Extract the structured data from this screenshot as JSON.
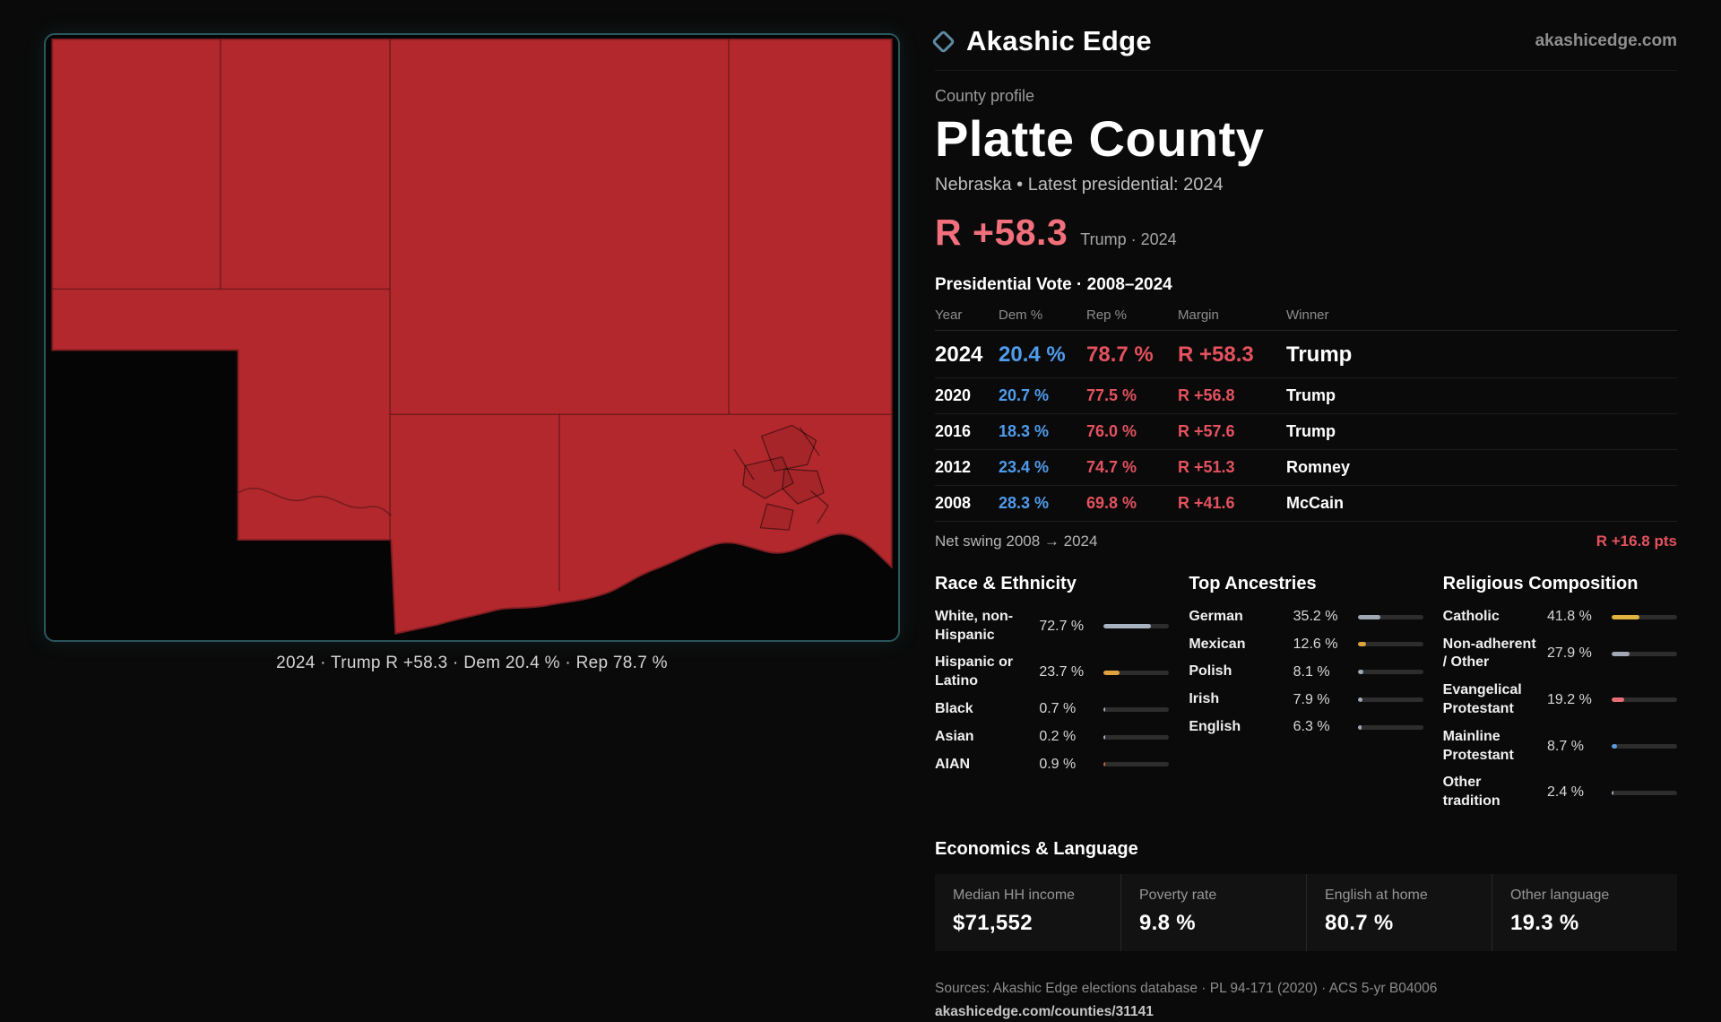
{
  "colors": {
    "dem_blue": "#4f9ced",
    "rep_red": "#e4525f",
    "headline_red": "#f2707c",
    "map_red": "#b2282d",
    "panel_border_teal": "#2a565c"
  },
  "brand": {
    "name": "Akashic Edge",
    "site": "akashicedge.com"
  },
  "map": {
    "caption": "2024 · Trump R +58.3 · Dem 20.4 % · Rep 78.7 %"
  },
  "profile": {
    "kicker": "County profile",
    "title": "Platte County",
    "subtitle": "Nebraska • Latest presidential: 2024",
    "headline_margin": "R +58.3",
    "headline_note": "Trump · 2024"
  },
  "vote_table": {
    "title": "Presidential Vote · 2008–2024",
    "columns": [
      "Year",
      "Dem %",
      "Rep %",
      "Margin",
      "Winner"
    ],
    "rows": [
      {
        "year": "2024",
        "dem": "20.4 %",
        "rep": "78.7 %",
        "margin": "R +58.3",
        "winner": "Trump"
      },
      {
        "year": "2020",
        "dem": "20.7 %",
        "rep": "77.5 %",
        "margin": "R +56.8",
        "winner": "Trump"
      },
      {
        "year": "2016",
        "dem": "18.3 %",
        "rep": "76.0 %",
        "margin": "R +57.6",
        "winner": "Trump"
      },
      {
        "year": "2012",
        "dem": "23.4 %",
        "rep": "74.7 %",
        "margin": "R +51.3",
        "winner": "Romney"
      },
      {
        "year": "2008",
        "dem": "28.3 %",
        "rep": "69.8 %",
        "margin": "R +41.6",
        "winner": "McCain"
      }
    ],
    "net_swing_label": "Net swing 2008 → 2024",
    "net_swing_value": "R +16.8 pts"
  },
  "demographics": [
    {
      "title": "Race & Ethnicity",
      "rows": [
        {
          "label": "White, non-Hispanic",
          "value": "72.7 %",
          "pct": 72.7,
          "color": "#a9b2c2"
        },
        {
          "label": "Hispanic or Latino",
          "value": "23.7 %",
          "pct": 23.7,
          "color": "#dfa23d"
        },
        {
          "label": "Black",
          "value": "0.7 %",
          "pct": 0.7,
          "color": "#a9b2c2"
        },
        {
          "label": "Asian",
          "value": "0.2 %",
          "pct": 0.2,
          "color": "#a9b2c2"
        },
        {
          "label": "AIAN",
          "value": "0.9 %",
          "pct": 0.9,
          "color": "#cf6a3c"
        }
      ]
    },
    {
      "title": "Top Ancestries",
      "rows": [
        {
          "label": "German",
          "value": "35.2 %",
          "pct": 35.2,
          "color": "#9fa8b4"
        },
        {
          "label": "Mexican",
          "value": "12.6 %",
          "pct": 12.6,
          "color": "#dfa23d"
        },
        {
          "label": "Polish",
          "value": "8.1 %",
          "pct": 8.1,
          "color": "#9fa8b4"
        },
        {
          "label": "Irish",
          "value": "7.9 %",
          "pct": 7.9,
          "color": "#9fa8b4"
        },
        {
          "label": "English",
          "value": "6.3 %",
          "pct": 6.3,
          "color": "#9fa8b4"
        }
      ]
    },
    {
      "title": "Religious Composition",
      "rows": [
        {
          "label": "Catholic",
          "value": "41.8 %",
          "pct": 41.8,
          "color": "#e0b23f"
        },
        {
          "label": "Non-adherent / Other",
          "value": "27.9 %",
          "pct": 27.9,
          "color": "#9fa8b4"
        },
        {
          "label": "Evangelical Protestant",
          "value": "19.2 %",
          "pct": 19.2,
          "color": "#e76c74"
        },
        {
          "label": "Mainline Protestant",
          "value": "8.7 %",
          "pct": 8.7,
          "color": "#5b9bd8"
        },
        {
          "label": "Other tradition",
          "value": "2.4 %",
          "pct": 2.4,
          "color": "#9fa8b4"
        }
      ]
    }
  ],
  "economics": {
    "title": "Economics & Language",
    "stats": [
      {
        "label": "Median HH income",
        "value": "$71,552"
      },
      {
        "label": "Poverty rate",
        "value": "9.8 %"
      },
      {
        "label": "English at home",
        "value": "80.7 %"
      },
      {
        "label": "Other language",
        "value": "19.3 %"
      }
    ]
  },
  "footer": {
    "sources": "Sources: Akashic Edge elections database · PL 94-171 (2020) · ACS 5-yr B04006",
    "permalink": "akashicedge.com/counties/31141"
  },
  "chart_data": [
    {
      "type": "table",
      "title": "Presidential Vote · 2008–2024",
      "columns": [
        "Year",
        "Dem %",
        "Rep %",
        "Margin",
        "Winner"
      ],
      "rows": [
        [
          "2024",
          20.4,
          78.7,
          "R +58.3",
          "Trump"
        ],
        [
          "2020",
          20.7,
          77.5,
          "R +56.8",
          "Trump"
        ],
        [
          "2016",
          18.3,
          76.0,
          "R +57.6",
          "Trump"
        ],
        [
          "2012",
          23.4,
          74.7,
          "R +51.3",
          "Romney"
        ],
        [
          "2008",
          28.3,
          69.8,
          "R +41.6",
          "McCain"
        ]
      ],
      "annotations": [
        "Net swing 2008 → 2024: R +16.8 pts",
        "Headline margin: R +58.3 (Trump · 2024)"
      ]
    },
    {
      "type": "bar",
      "title": "Race & Ethnicity",
      "categories": [
        "White, non-Hispanic",
        "Hispanic or Latino",
        "Black",
        "Asian",
        "AIAN"
      ],
      "values": [
        72.7,
        23.7,
        0.7,
        0.2,
        0.9
      ],
      "xlim": [
        0,
        100
      ],
      "unit": "%",
      "orientation": "horizontal"
    },
    {
      "type": "bar",
      "title": "Top Ancestries",
      "categories": [
        "German",
        "Mexican",
        "Polish",
        "Irish",
        "English"
      ],
      "values": [
        35.2,
        12.6,
        8.1,
        7.9,
        6.3
      ],
      "xlim": [
        0,
        100
      ],
      "unit": "%",
      "orientation": "horizontal"
    },
    {
      "type": "bar",
      "title": "Religious Composition",
      "categories": [
        "Catholic",
        "Non-adherent / Other",
        "Evangelical Protestant",
        "Mainline Protestant",
        "Other tradition"
      ],
      "values": [
        41.8,
        27.9,
        19.2,
        8.7,
        2.4
      ],
      "xlim": [
        0,
        100
      ],
      "unit": "%",
      "orientation": "horizontal"
    },
    {
      "type": "heatmap",
      "title": "Platte County precinct map (2024)",
      "note": "Entire county shaded Republican red, margin R +58.3; Columbus city precinct cluster visible southeast-center"
    }
  ]
}
